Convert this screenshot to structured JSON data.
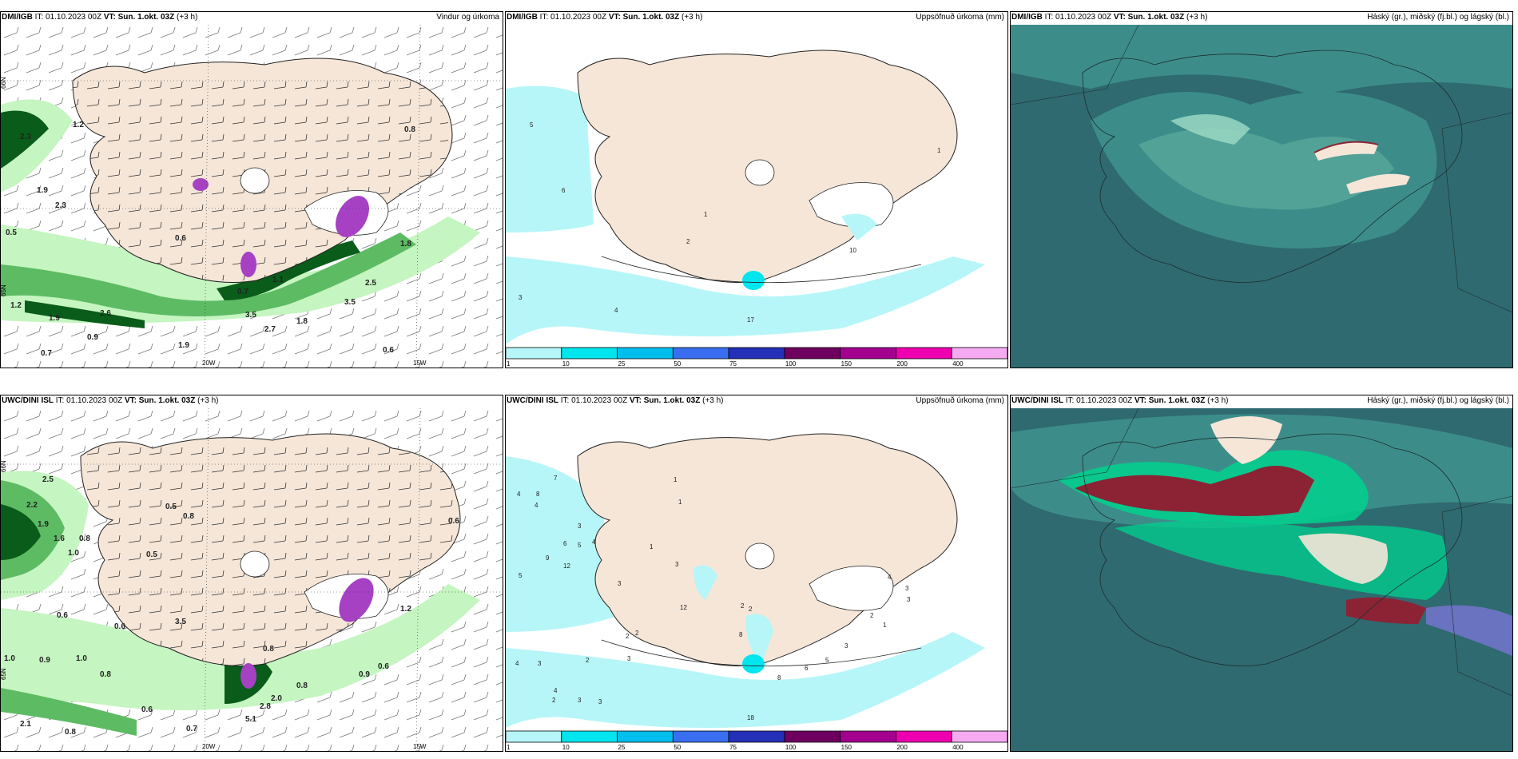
{
  "panels": [
    {
      "id": "p1",
      "model": "DMI/IGB",
      "it_label": "IT:",
      "it_value": "01.10.2023 00Z",
      "vt_label": "VT:",
      "vt_value": "Sun. 1.okt. 03Z",
      "lead": "(+3 h)",
      "product": "Vindur og úrkoma",
      "lat_labels": [
        "66N",
        "65N"
      ],
      "lon_labels": [
        "20W",
        "15W"
      ],
      "values": [
        "2.3",
        "1.2",
        "0.8",
        "0.6",
        "0.5",
        "1.9",
        "2.3",
        "1.1",
        "0.7",
        "3.5",
        "2.5",
        "3.5",
        "1.2",
        "1.9",
        "2.6",
        "0.9",
        "1.9",
        "0.7",
        "0.6",
        "2.7",
        "1.8",
        "1.8"
      ]
    },
    {
      "id": "p2",
      "model": "DMI/IGB",
      "it_label": "IT:",
      "it_value": "01.10.2023 00Z",
      "vt_label": "VT:",
      "vt_value": "Sun. 1.okt. 03Z",
      "lead": "(+3 h)",
      "product": "Uppsöfnuð úrkoma (mm)",
      "values": [
        "5",
        "6",
        "1",
        "2",
        "3",
        "4",
        "1",
        "10",
        "17"
      ]
    },
    {
      "id": "p3",
      "model": "DMI/IGB",
      "it_label": "IT:",
      "it_value": "01.10.2023 00Z",
      "vt_label": "VT:",
      "vt_value": "Sun. 1.okt. 03Z",
      "lead": "(+3 h)",
      "product": "Háský (gr.), miðský (fj.bl.) og lágský (bl.)"
    },
    {
      "id": "p4",
      "model": "UWC/DINI ISL",
      "it_label": "IT:",
      "it_value": "01.10.2023 00Z",
      "vt_label": "VT:",
      "vt_value": "Sun. 1.okt. 03Z",
      "lead": "(+3 h)",
      "product": "",
      "lat_labels": [
        "66N",
        "65N"
      ],
      "lon_labels": [
        "20W",
        "15W"
      ],
      "values": [
        "2.5",
        "2.2",
        "1.9",
        "1.6",
        "1.0",
        "0.8",
        "0.5",
        "0.8",
        "0.5",
        "0.6",
        "0.6",
        "1.0",
        "0.9",
        "1.0",
        "0.8",
        "0.6",
        "2.1",
        "0.8",
        "0.7",
        "3.5",
        "0.8",
        "2.8",
        "5.1",
        "2.0",
        "0.8",
        "0.6",
        "0.9",
        "1.2",
        "0.6"
      ]
    },
    {
      "id": "p5",
      "model": "UWC/DINI ISL",
      "it_label": "IT:",
      "it_value": "01.10.2023 00Z",
      "vt_label": "VT:",
      "vt_value": "Sun. 1.okt. 03Z",
      "lead": "(+3 h)",
      "product": "Uppsöfnuð úrkoma (mm)",
      "values": [
        "7",
        "4",
        "8",
        "4",
        "5",
        "3",
        "6",
        "5",
        "4",
        "9",
        "12",
        "3",
        "1",
        "1",
        "1",
        "3",
        "12",
        "2",
        "2",
        "2",
        "3",
        "4",
        "3",
        "4",
        "2",
        "3",
        "3",
        "8",
        "2",
        "2",
        "8",
        "6",
        "5",
        "3",
        "2",
        "1",
        "3",
        "3",
        "4",
        "2",
        "18"
      ]
    },
    {
      "id": "p6",
      "model": "UWC/DINI ISL",
      "it_label": "IT:",
      "it_value": "01.10.2023 00Z",
      "vt_label": "VT:",
      "vt_value": "Sun. 1.okt. 03Z",
      "lead": "(+3 h)",
      "product": "Háský (gr.), miðský (fj.bl.) og lágský (bl.)"
    }
  ],
  "colorbar": {
    "ticks": [
      "1",
      "10",
      "25",
      "50",
      "75",
      "100",
      "150",
      "200",
      "400"
    ],
    "colors": [
      "#b7f6f8",
      "#00e5ee",
      "#00bfee",
      "#3a6ef0",
      "#2430b8",
      "#6e0060",
      "#a4008f",
      "#ee00b0",
      "#f5aaf2"
    ]
  },
  "colors": {
    "land": "#f5e6d8",
    "sea": "#ffffff",
    "precip_light": "#c5f5c0",
    "precip_mid": "#5dbb63",
    "precip_dark": "#0a5c1a",
    "precip_purple": "#a641c4",
    "accum_light": "#b7f6f8",
    "accum_mid": "#00e5ee",
    "cloud_low": "#2f6a70",
    "cloud_mid": "#3c8d8a",
    "cloud_high": "#9fdcc5",
    "cloud_red": "#8b2335"
  }
}
